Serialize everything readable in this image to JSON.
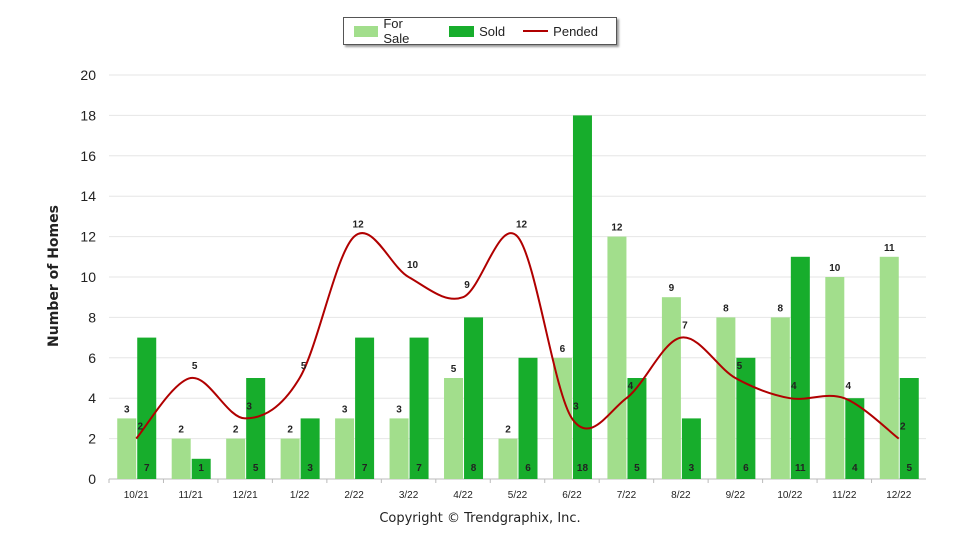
{
  "chart_data": {
    "type": "bar",
    "categories": [
      "10/21",
      "11/21",
      "12/21",
      "1/22",
      "2/22",
      "3/22",
      "4/22",
      "5/22",
      "6/22",
      "7/22",
      "8/22",
      "9/22",
      "10/22",
      "11/22",
      "12/22"
    ],
    "series": [
      {
        "name": "For Sale",
        "type": "bar",
        "color": "#a2de8c",
        "values": [
          3,
          2,
          2,
          2,
          3,
          3,
          5,
          2,
          6,
          12,
          9,
          8,
          8,
          10,
          11
        ]
      },
      {
        "name": "Sold",
        "type": "bar",
        "color": "#17ad2c",
        "values": [
          7,
          1,
          5,
          3,
          7,
          7,
          8,
          6,
          18,
          5,
          3,
          6,
          11,
          4,
          5
        ]
      },
      {
        "name": "Pended",
        "type": "line",
        "color": "#b00000",
        "values": [
          2,
          5,
          3,
          5,
          12,
          10,
          9,
          12,
          3,
          4,
          7,
          5,
          4,
          4,
          2
        ]
      }
    ],
    "ylabel": "Number of Homes",
    "ylim": [
      0,
      20
    ],
    "yticks": [
      0,
      2,
      4,
      6,
      8,
      10,
      12,
      14,
      16,
      18,
      20
    ],
    "grid": true,
    "legend": "top-center"
  },
  "footer": {
    "copyright": "Copyright © Trendgraphix, Inc."
  }
}
